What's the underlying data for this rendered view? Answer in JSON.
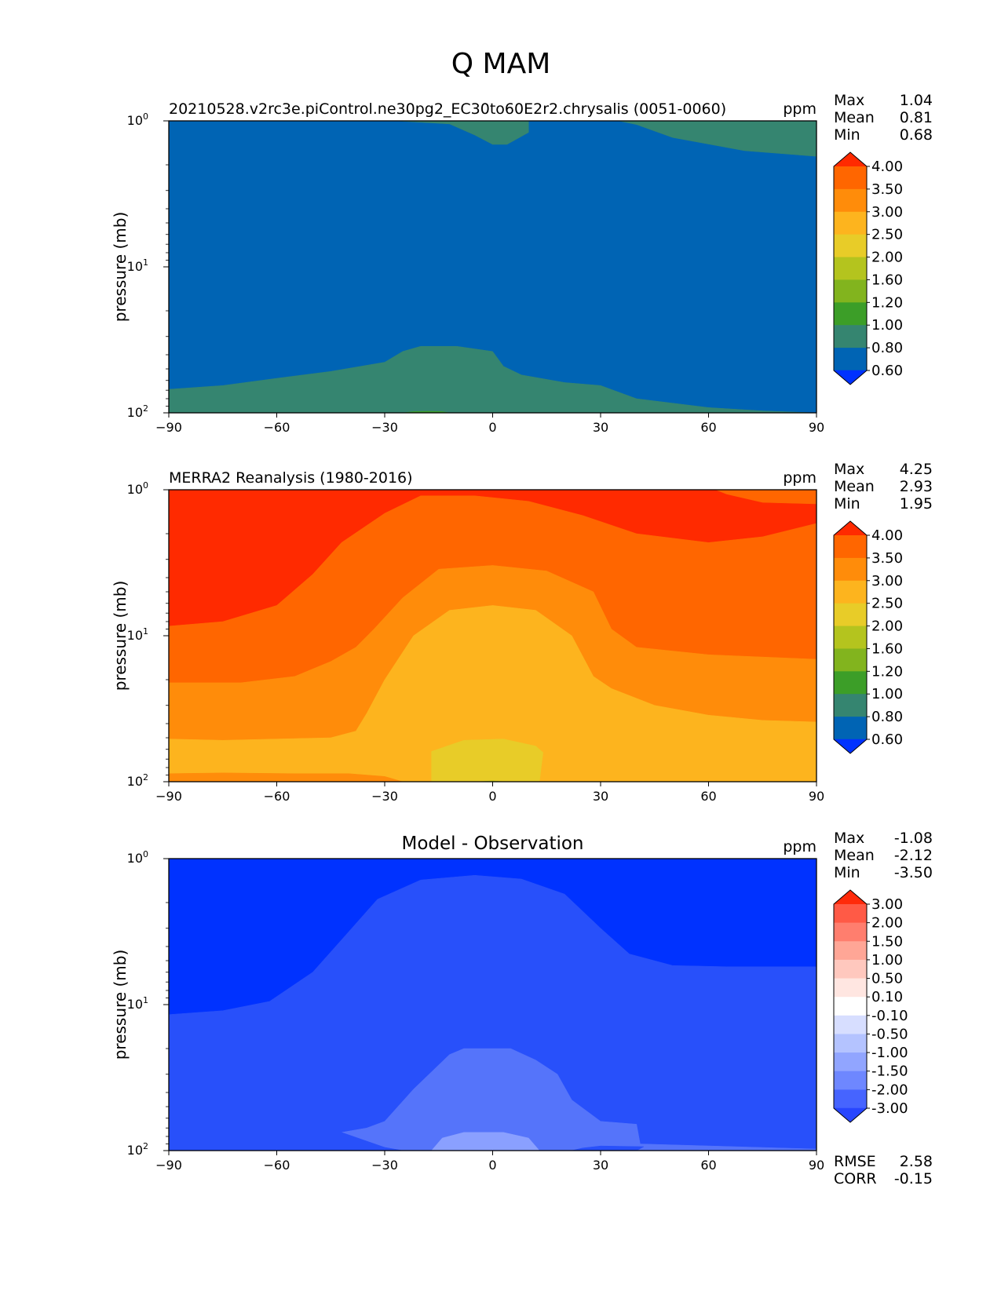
{
  "chart_data": {
    "type": "contour",
    "title": "Q MAM",
    "panels": [
      {
        "title_left": "20210528.v2rc3e.piControl.ne30pg2_EC30to60E2r2.chrysalis (0051-0060)",
        "title_center": "",
        "units": "ppm",
        "ylabel": "pressure (mb)",
        "xticks": [
          "−90",
          "−60",
          "−30",
          "0",
          "30",
          "60",
          "90"
        ],
        "yticks": [
          {
            "base": "10",
            "exp": "0"
          },
          {
            "base": "10",
            "exp": "1"
          },
          {
            "base": "10",
            "exp": "2"
          }
        ],
        "xlim": [
          -90,
          90
        ],
        "ylim": [
          100,
          1
        ],
        "yscale": "log",
        "stats": [
          {
            "label": "Max",
            "value": "1.04"
          },
          {
            "label": "Mean",
            "value": "0.81"
          },
          {
            "label": "Min",
            "value": "0.68"
          }
        ],
        "colorbar": {
          "levels": [
            "4.00",
            "3.50",
            "3.00",
            "2.50",
            "2.00",
            "1.60",
            "1.20",
            "1.00",
            "0.80",
            "0.60"
          ],
          "colors": [
            "#ff2a00",
            "#ff6600",
            "#ff8c0a",
            "#fdb41e",
            "#e8cc28",
            "#b4c41e",
            "#82b41e",
            "#3c9e28",
            "#358570",
            "#0064b4",
            "#0032ff"
          ]
        },
        "base_color": "#0064b4",
        "regions": [
          {
            "color": "#358570",
            "points": [
              [
                -90,
                69
              ],
              [
                -75,
                65
              ],
              [
                -60,
                58
              ],
              [
                -45,
                52
              ],
              [
                -30,
                45
              ],
              [
                -25,
                38
              ],
              [
                -20,
                35
              ],
              [
                -10,
                35
              ],
              [
                0,
                38
              ],
              [
                3,
                48
              ],
              [
                8,
                55
              ],
              [
                20,
                62
              ],
              [
                30,
                65
              ],
              [
                40,
                80
              ],
              [
                60,
                92
              ],
              [
                75,
                97
              ],
              [
                90,
                100
              ],
              [
                -90,
                100
              ]
            ]
          },
          {
            "color": "#3c9e28",
            "points": [
              [
                -25,
                100
              ],
              [
                -22,
                98
              ],
              [
                -18,
                97.5
              ],
              [
                -14,
                98
              ],
              [
                -12,
                100
              ]
            ]
          },
          {
            "color": "#358570",
            "points": [
              [
                -27,
                1
              ],
              [
                5,
                1
              ],
              [
                10,
                1
              ],
              [
                10,
                1.2
              ],
              [
                4,
                1.45
              ],
              [
                0,
                1.45
              ],
              [
                -5,
                1.25
              ],
              [
                -12,
                1.05
              ]
            ]
          },
          {
            "color": "#358570",
            "points": [
              [
                10,
                1
              ],
              [
                35,
                1
              ],
              [
                40,
                1.06
              ],
              [
                50,
                1.3
              ],
              [
                70,
                1.6
              ],
              [
                90,
                1.75
              ],
              [
                90,
                1
              ],
              [
                10,
                1
              ]
            ]
          }
        ],
        "rmse": null,
        "corr": null
      },
      {
        "title_left": "MERRA2 Reanalysis (1980-2016)",
        "title_center": "",
        "units": "ppm",
        "ylabel": "pressure (mb)",
        "xticks": [
          "−90",
          "−60",
          "−30",
          "0",
          "30",
          "60",
          "90"
        ],
        "yticks": [
          {
            "base": "10",
            "exp": "0"
          },
          {
            "base": "10",
            "exp": "1"
          },
          {
            "base": "10",
            "exp": "2"
          }
        ],
        "xlim": [
          -90,
          90
        ],
        "ylim": [
          100,
          1
        ],
        "yscale": "log",
        "stats": [
          {
            "label": "Max",
            "value": "4.25"
          },
          {
            "label": "Mean",
            "value": "2.93"
          },
          {
            "label": "Min",
            "value": "1.95"
          }
        ],
        "colorbar": {
          "levels": [
            "4.00",
            "3.50",
            "3.00",
            "2.50",
            "2.00",
            "1.60",
            "1.20",
            "1.00",
            "0.80",
            "0.60"
          ],
          "colors": [
            "#ff2a00",
            "#ff6600",
            "#ff8c0a",
            "#fdb41e",
            "#e8cc28",
            "#b4c41e",
            "#82b41e",
            "#3c9e28",
            "#358570",
            "#0064b4",
            "#0032ff"
          ]
        },
        "base_color": "#ff2a00",
        "regions": [
          {
            "color": "#ff6600",
            "points": [
              [
                -90,
                8.6
              ],
              [
                -75,
                8.0
              ],
              [
                -60,
                6.2
              ],
              [
                -50,
                3.8
              ],
              [
                -42,
                2.3
              ],
              [
                -30,
                1.45
              ],
              [
                -20,
                1.1
              ],
              [
                -5,
                1.1
              ],
              [
                10,
                1.2
              ],
              [
                25,
                1.5
              ],
              [
                40,
                2.0
              ],
              [
                60,
                2.3
              ],
              [
                75,
                2.1
              ],
              [
                90,
                1.7
              ],
              [
                90,
                100
              ],
              [
                -90,
                100
              ]
            ]
          },
          {
            "color": "#ff6600",
            "points": [
              [
                62,
                1
              ],
              [
                90,
                1
              ],
              [
                90,
                1.25
              ],
              [
                75,
                1.22
              ],
              [
                65,
                1.07
              ]
            ]
          },
          {
            "color": "#ff8c0a",
            "points": [
              [
                -90,
                21
              ],
              [
                -70,
                21
              ],
              [
                -55,
                19
              ],
              [
                -45,
                15
              ],
              [
                -38,
                12
              ],
              [
                -33,
                9
              ],
              [
                -25,
                5.5
              ],
              [
                -15,
                3.5
              ],
              [
                0,
                3.3
              ],
              [
                15,
                3.6
              ],
              [
                28,
                5
              ],
              [
                33,
                9
              ],
              [
                40,
                12
              ],
              [
                60,
                13.5
              ],
              [
                90,
                14.5
              ],
              [
                90,
                100
              ],
              [
                -90,
                100
              ]
            ]
          },
          {
            "color": "#fdb41e",
            "points": [
              [
                -90,
                51
              ],
              [
                -75,
                52
              ],
              [
                -60,
                51
              ],
              [
                -45,
                50
              ],
              [
                -38,
                45
              ],
              [
                -35,
                34
              ],
              [
                -30,
                20
              ],
              [
                -22,
                10
              ],
              [
                -12,
                6.7
              ],
              [
                0,
                6.2
              ],
              [
                12,
                6.7
              ],
              [
                22,
                10
              ],
              [
                28,
                19
              ],
              [
                33,
                23
              ],
              [
                45,
                30
              ],
              [
                60,
                35
              ],
              [
                75,
                38
              ],
              [
                90,
                39
              ],
              [
                90,
                100
              ],
              [
                -90,
                100
              ]
            ]
          },
          {
            "color": "#ff8c0a",
            "points": [
              [
                -90,
                88
              ],
              [
                -75,
                87
              ],
              [
                -55,
                88
              ],
              [
                -40,
                88
              ],
              [
                -30,
                92
              ],
              [
                -25,
                100
              ],
              [
                -90,
                100
              ]
            ]
          },
          {
            "color": "#e8cc28",
            "points": [
              [
                -17,
                100
              ],
              [
                -17,
                62
              ],
              [
                -8,
                52
              ],
              [
                3,
                51
              ],
              [
                12,
                57
              ],
              [
                14,
                63
              ],
              [
                13,
                100
              ]
            ]
          },
          {
            "color": "#b4c41e",
            "points": [
              [
                -4,
                100
              ],
              [
                0,
                98.5
              ],
              [
                3,
                100
              ]
            ]
          }
        ],
        "rmse": null,
        "corr": null
      },
      {
        "title_left": "",
        "title_center": "Model - Observation",
        "units": "ppm",
        "ylabel": "pressure (mb)",
        "xticks": [
          "−90",
          "−60",
          "−30",
          "0",
          "30",
          "60",
          "90"
        ],
        "yticks": [
          {
            "base": "10",
            "exp": "0"
          },
          {
            "base": "10",
            "exp": "1"
          },
          {
            "base": "10",
            "exp": "2"
          }
        ],
        "xlim": [
          -90,
          90
        ],
        "ylim": [
          100,
          1
        ],
        "yscale": "log",
        "stats": [
          {
            "label": "Max",
            "value": "-1.08"
          },
          {
            "label": "Mean",
            "value": "-2.12"
          },
          {
            "label": "Min",
            "value": "-3.50"
          }
        ],
        "colorbar": {
          "levels": [
            "3.00",
            "2.00",
            "1.50",
            "1.00",
            "0.50",
            "0.10",
            "-0.10",
            "-0.50",
            "-1.00",
            "-1.50",
            "-2.00",
            "-3.00"
          ],
          "colors": [
            "#ff2a0a",
            "#ff5a46",
            "#ff7e6e",
            "#ffa696",
            "#ffc8be",
            "#ffe6e1",
            "#ffffff",
            "#d7deff",
            "#b4c3ff",
            "#91a5ff",
            "#6e87ff",
            "#4664ff",
            "#2846ff"
          ]
        },
        "base_color": "#0032ff",
        "regions": [
          {
            "color": "#2850fa",
            "points": [
              [
                -90,
                11.7
              ],
              [
                -75,
                11.0
              ],
              [
                -62,
                9.5
              ],
              [
                -50,
                6.0
              ],
              [
                -42,
                3.6
              ],
              [
                -32,
                1.9
              ],
              [
                -20,
                1.4
              ],
              [
                -5,
                1.3
              ],
              [
                8,
                1.38
              ],
              [
                20,
                1.75
              ],
              [
                30,
                3.0
              ],
              [
                38,
                4.5
              ],
              [
                50,
                5.4
              ],
              [
                65,
                5.5
              ],
              [
                90,
                5.5
              ],
              [
                90,
                100
              ],
              [
                -90,
                100
              ]
            ]
          },
          {
            "color": "#5574fa",
            "points": [
              [
                -42,
                75
              ],
              [
                -35,
                70
              ],
              [
                -30,
                63
              ],
              [
                -22,
                38
              ],
              [
                -12,
                22
              ],
              [
                -8,
                20
              ],
              [
                5,
                20
              ],
              [
                12,
                24
              ],
              [
                18,
                30
              ],
              [
                22,
                45
              ],
              [
                30,
                63
              ],
              [
                40,
                66
              ],
              [
                41,
                90
              ],
              [
                90,
                97.5
              ],
              [
                90,
                100
              ],
              [
                -90,
                100
              ]
            ]
          },
          {
            "color": "#2850fa",
            "points": [
              [
                -90,
                100
              ],
              [
                -25,
                100
              ],
              [
                -30,
                95
              ],
              [
                -42,
                75
              ],
              [
                -90,
                75
              ]
            ]
          },
          {
            "color": "#8aa0ff",
            "points": [
              [
                -17,
                100
              ],
              [
                -14,
                82
              ],
              [
                -8,
                75
              ],
              [
                3,
                75
              ],
              [
                10,
                82
              ],
              [
                13,
                100
              ]
            ]
          },
          {
            "color": "#2850fa",
            "points": [
              [
                22,
                100
              ],
              [
                25,
                96
              ],
              [
                30,
                93
              ],
              [
                42,
                94
              ],
              [
                40,
                100
              ]
            ]
          }
        ],
        "rmse": "2.58",
        "corr": "-0.15"
      }
    ]
  }
}
